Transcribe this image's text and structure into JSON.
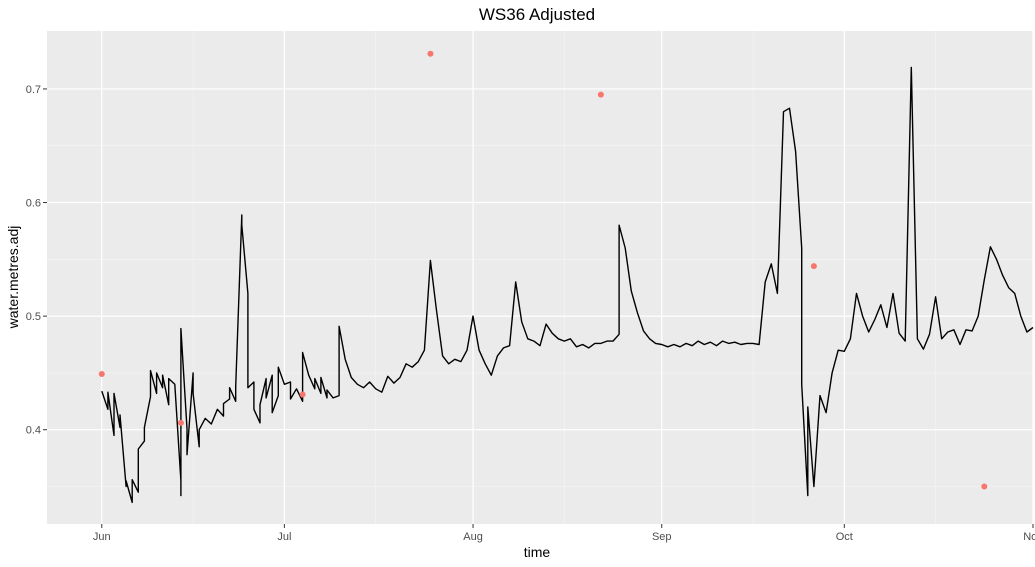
{
  "chart_data": {
    "type": "line",
    "title": "WS36 Adjusted",
    "xlabel": "time",
    "ylabel": "water.metres.adj",
    "x_range": [
      "2017-05-23",
      "2017-11-01"
    ],
    "ylim": [
      0.317,
      0.751
    ],
    "x_ticks": [
      {
        "date": "2017-06-01",
        "label": "Jun"
      },
      {
        "date": "2017-07-01",
        "label": "Jul"
      },
      {
        "date": "2017-08-01",
        "label": "Aug"
      },
      {
        "date": "2017-09-01",
        "label": "Sep"
      },
      {
        "date": "2017-10-01",
        "label": "Oct"
      },
      {
        "date": "2017-11-01",
        "label": "Nov"
      }
    ],
    "x_minor_ticks": [
      "2017-06-16",
      "2017-07-16",
      "2017-08-16",
      "2017-09-16",
      "2017-10-16"
    ],
    "y_ticks": [
      {
        "value": 0.4,
        "label": "0.4"
      },
      {
        "value": 0.5,
        "label": "0.5"
      },
      {
        "value": 0.6,
        "label": "0.6"
      },
      {
        "value": 0.7,
        "label": "0.7"
      }
    ],
    "y_minor_ticks": [
      0.35,
      0.45,
      0.55,
      0.65
    ],
    "grid": true,
    "series": [
      {
        "kind": "line",
        "color": "#000000",
        "points": [
          [
            "2017-06-01",
            0.434
          ],
          [
            "2017-06-02",
            0.418
          ],
          [
            "2017-06-02",
            0.433
          ],
          [
            "2017-06-03",
            0.395
          ],
          [
            "2017-06-03",
            0.432
          ],
          [
            "2017-06-04",
            0.402
          ],
          [
            "2017-06-04",
            0.413
          ],
          [
            "2017-06-05",
            0.35
          ],
          [
            "2017-06-05",
            0.355
          ],
          [
            "2017-06-06",
            0.336
          ],
          [
            "2017-06-06",
            0.356
          ],
          [
            "2017-06-07",
            0.345
          ],
          [
            "2017-06-07",
            0.383
          ],
          [
            "2017-06-08",
            0.39
          ],
          [
            "2017-06-08",
            0.402
          ],
          [
            "2017-06-09",
            0.429
          ],
          [
            "2017-06-09",
            0.452
          ],
          [
            "2017-06-10",
            0.432
          ],
          [
            "2017-06-10",
            0.45
          ],
          [
            "2017-06-11",
            0.437
          ],
          [
            "2017-06-11",
            0.448
          ],
          [
            "2017-06-12",
            0.422
          ],
          [
            "2017-06-12",
            0.445
          ],
          [
            "2017-06-13",
            0.44
          ],
          [
            "2017-06-14",
            0.355
          ],
          [
            "2017-06-14",
            0.342
          ],
          [
            "2017-06-14",
            0.489
          ],
          [
            "2017-06-15",
            0.401
          ],
          [
            "2017-06-15",
            0.378
          ],
          [
            "2017-06-16",
            0.45
          ],
          [
            "2017-06-16",
            0.432
          ],
          [
            "2017-06-17",
            0.385
          ],
          [
            "2017-06-17",
            0.4
          ],
          [
            "2017-06-18",
            0.41
          ],
          [
            "2017-06-19",
            0.405
          ],
          [
            "2017-06-20",
            0.418
          ],
          [
            "2017-06-21",
            0.412
          ],
          [
            "2017-06-21",
            0.423
          ],
          [
            "2017-06-22",
            0.427
          ],
          [
            "2017-06-22",
            0.437
          ],
          [
            "2017-06-23",
            0.425
          ],
          [
            "2017-06-23",
            0.438
          ],
          [
            "2017-06-24",
            0.589
          ],
          [
            "2017-06-24",
            0.58
          ],
          [
            "2017-06-25",
            0.52
          ],
          [
            "2017-06-25",
            0.437
          ],
          [
            "2017-06-26",
            0.442
          ],
          [
            "2017-06-26",
            0.418
          ],
          [
            "2017-06-27",
            0.406
          ],
          [
            "2017-06-27",
            0.422
          ],
          [
            "2017-06-28",
            0.445
          ],
          [
            "2017-06-28",
            0.428
          ],
          [
            "2017-06-29",
            0.448
          ],
          [
            "2017-06-29",
            0.415
          ],
          [
            "2017-06-30",
            0.43
          ],
          [
            "2017-06-30",
            0.455
          ],
          [
            "2017-07-01",
            0.44
          ],
          [
            "2017-07-02",
            0.442
          ],
          [
            "2017-07-02",
            0.427
          ],
          [
            "2017-07-03",
            0.436
          ],
          [
            "2017-07-04",
            0.425
          ],
          [
            "2017-07-04",
            0.468
          ],
          [
            "2017-07-05",
            0.448
          ],
          [
            "2017-07-06",
            0.436
          ],
          [
            "2017-07-06",
            0.445
          ],
          [
            "2017-07-07",
            0.432
          ],
          [
            "2017-07-07",
            0.446
          ],
          [
            "2017-07-08",
            0.428
          ],
          [
            "2017-07-08",
            0.435
          ],
          [
            "2017-07-09",
            0.428
          ],
          [
            "2017-07-10",
            0.43
          ],
          [
            "2017-07-10",
            0.491
          ],
          [
            "2017-07-11",
            0.462
          ],
          [
            "2017-07-12",
            0.446
          ],
          [
            "2017-07-13",
            0.44
          ],
          [
            "2017-07-14",
            0.437
          ],
          [
            "2017-07-15",
            0.442
          ],
          [
            "2017-07-16",
            0.436
          ],
          [
            "2017-07-17",
            0.433
          ],
          [
            "2017-07-18",
            0.447
          ],
          [
            "2017-07-19",
            0.441
          ],
          [
            "2017-07-20",
            0.446
          ],
          [
            "2017-07-21",
            0.458
          ],
          [
            "2017-07-22",
            0.455
          ],
          [
            "2017-07-23",
            0.46
          ],
          [
            "2017-07-24",
            0.47
          ],
          [
            "2017-07-25",
            0.549
          ],
          [
            "2017-07-26",
            0.505
          ],
          [
            "2017-07-27",
            0.465
          ],
          [
            "2017-07-28",
            0.458
          ],
          [
            "2017-07-29",
            0.462
          ],
          [
            "2017-07-30",
            0.46
          ],
          [
            "2017-07-31",
            0.47
          ],
          [
            "2017-08-01",
            0.5
          ],
          [
            "2017-08-02",
            0.47
          ],
          [
            "2017-08-03",
            0.458
          ],
          [
            "2017-08-04",
            0.448
          ],
          [
            "2017-08-05",
            0.465
          ],
          [
            "2017-08-06",
            0.472
          ],
          [
            "2017-08-07",
            0.474
          ],
          [
            "2017-08-08",
            0.53
          ],
          [
            "2017-08-09",
            0.495
          ],
          [
            "2017-08-10",
            0.48
          ],
          [
            "2017-08-11",
            0.478
          ],
          [
            "2017-08-12",
            0.474
          ],
          [
            "2017-08-13",
            0.493
          ],
          [
            "2017-08-14",
            0.485
          ],
          [
            "2017-08-15",
            0.48
          ],
          [
            "2017-08-16",
            0.478
          ],
          [
            "2017-08-17",
            0.48
          ],
          [
            "2017-08-18",
            0.473
          ],
          [
            "2017-08-19",
            0.475
          ],
          [
            "2017-08-20",
            0.472
          ],
          [
            "2017-08-21",
            0.476
          ],
          [
            "2017-08-22",
            0.476
          ],
          [
            "2017-08-23",
            0.478
          ],
          [
            "2017-08-24",
            0.478
          ],
          [
            "2017-08-25",
            0.484
          ],
          [
            "2017-08-25",
            0.58
          ],
          [
            "2017-08-26",
            0.56
          ],
          [
            "2017-08-27",
            0.522
          ],
          [
            "2017-08-28",
            0.503
          ],
          [
            "2017-08-29",
            0.487
          ],
          [
            "2017-08-30",
            0.48
          ],
          [
            "2017-08-31",
            0.476
          ],
          [
            "2017-09-01",
            0.475
          ],
          [
            "2017-09-02",
            0.473
          ],
          [
            "2017-09-03",
            0.475
          ],
          [
            "2017-09-04",
            0.473
          ],
          [
            "2017-09-05",
            0.476
          ],
          [
            "2017-09-06",
            0.474
          ],
          [
            "2017-09-07",
            0.478
          ],
          [
            "2017-09-08",
            0.475
          ],
          [
            "2017-09-09",
            0.477
          ],
          [
            "2017-09-10",
            0.474
          ],
          [
            "2017-09-11",
            0.478
          ],
          [
            "2017-09-12",
            0.476
          ],
          [
            "2017-09-13",
            0.477
          ],
          [
            "2017-09-14",
            0.475
          ],
          [
            "2017-09-15",
            0.476
          ],
          [
            "2017-09-16",
            0.476
          ],
          [
            "2017-09-17",
            0.475
          ],
          [
            "2017-09-18",
            0.53
          ],
          [
            "2017-09-19",
            0.546
          ],
          [
            "2017-09-20",
            0.52
          ],
          [
            "2017-09-21",
            0.68
          ],
          [
            "2017-09-22",
            0.683
          ],
          [
            "2017-09-23",
            0.645
          ],
          [
            "2017-09-24",
            0.56
          ],
          [
            "2017-09-24",
            0.44
          ],
          [
            "2017-09-25",
            0.342
          ],
          [
            "2017-09-25",
            0.42
          ],
          [
            "2017-09-26",
            0.35
          ],
          [
            "2017-09-27",
            0.43
          ],
          [
            "2017-09-28",
            0.415
          ],
          [
            "2017-09-29",
            0.45
          ],
          [
            "2017-09-30",
            0.47
          ],
          [
            "2017-10-01",
            0.469
          ],
          [
            "2017-10-02",
            0.48
          ],
          [
            "2017-10-03",
            0.52
          ],
          [
            "2017-10-04",
            0.5
          ],
          [
            "2017-10-05",
            0.486
          ],
          [
            "2017-10-06",
            0.497
          ],
          [
            "2017-10-07",
            0.51
          ],
          [
            "2017-10-08",
            0.49
          ],
          [
            "2017-10-09",
            0.52
          ],
          [
            "2017-10-10",
            0.485
          ],
          [
            "2017-10-11",
            0.478
          ],
          [
            "2017-10-12",
            0.719
          ],
          [
            "2017-10-13",
            0.48
          ],
          [
            "2017-10-14",
            0.471
          ],
          [
            "2017-10-15",
            0.484
          ],
          [
            "2017-10-16",
            0.517
          ],
          [
            "2017-10-17",
            0.48
          ],
          [
            "2017-10-18",
            0.486
          ],
          [
            "2017-10-19",
            0.488
          ],
          [
            "2017-10-20",
            0.475
          ],
          [
            "2017-10-21",
            0.488
          ],
          [
            "2017-10-22",
            0.487
          ],
          [
            "2017-10-23",
            0.5
          ],
          [
            "2017-10-24",
            0.532
          ],
          [
            "2017-10-25",
            0.561
          ],
          [
            "2017-10-26",
            0.55
          ],
          [
            "2017-10-27",
            0.536
          ],
          [
            "2017-10-28",
            0.525
          ],
          [
            "2017-10-29",
            0.52
          ],
          [
            "2017-10-30",
            0.5
          ],
          [
            "2017-10-31",
            0.486
          ],
          [
            "2017-11-01",
            0.49
          ]
        ]
      },
      {
        "kind": "points",
        "color": "#F8766D",
        "points": [
          [
            "2017-06-01",
            0.449
          ],
          [
            "2017-06-14",
            0.406
          ],
          [
            "2017-07-04",
            0.431
          ],
          [
            "2017-07-25",
            0.731
          ],
          [
            "2017-08-22",
            0.695
          ],
          [
            "2017-09-26",
            0.544
          ],
          [
            "2017-10-24",
            0.35
          ]
        ]
      }
    ]
  }
}
